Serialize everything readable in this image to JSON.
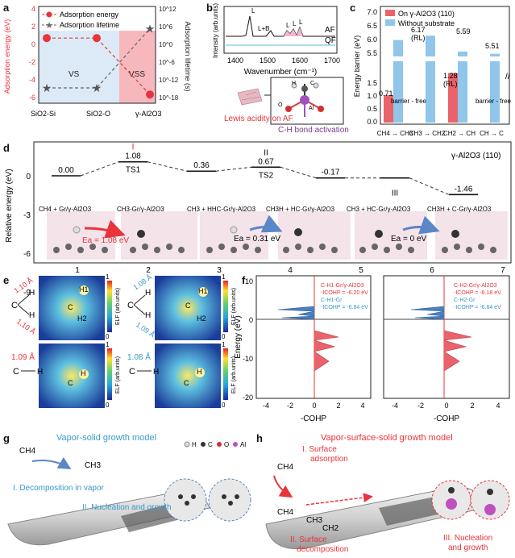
{
  "panels": {
    "a": "a",
    "b": "b",
    "c": "c",
    "d": "d",
    "e": "e",
    "f": "f",
    "g": "g",
    "h": "h"
  },
  "panel_a": {
    "legend": [
      "Adsorption energy",
      "Adsorption lifetime"
    ],
    "ylabel_left": "Adsorption energy (eV)",
    "ylabel_right": "Adsorption lifetime (s)",
    "categories": [
      "SiO2-Si",
      "SiO2-O",
      "γ-Al2O3"
    ],
    "region_labels": [
      "VS",
      "VSS"
    ],
    "left_ticks": [
      "4",
      "2",
      "0",
      "-2",
      "-4",
      "-6"
    ],
    "right_ticks": [
      "10^12",
      "10^6",
      "10^0",
      "10^-6",
      "10^-12",
      "10^-18"
    ],
    "colors": {
      "energy": "#e8343a",
      "lifetime": "#666666",
      "vs_bg": "#dce9f7",
      "vss_bg": "#f7b8bd"
    }
  },
  "panel_b": {
    "ylabel": "Intensity (arb.units)",
    "xlabel": "Wavenumber (cm⁻¹)",
    "xticks": [
      "1400",
      "1500",
      "1600",
      "1700"
    ],
    "traces": [
      "AF",
      "QF"
    ],
    "peak_labels": [
      "L",
      "L+B",
      "L",
      "L",
      "L"
    ],
    "caption_left": "Lewis acidity on AF",
    "caption_right": "C-H bond activation",
    "atoms": [
      "H",
      "C",
      "O",
      "Al"
    ]
  },
  "panel_c": {
    "ylabel": "Energy barrier (eV)",
    "legend": [
      "On γ-Al2O3 (110)",
      "Without substrate"
    ],
    "yticks_top": [
      "7.0",
      "6.5",
      "6.0",
      "5.5"
    ],
    "yticks_bottom": [
      "1.5",
      "1.0",
      "0.5",
      "0.0"
    ],
    "categories": [
      "CH4 → CH3",
      "CH3 → CH2",
      "CH2 → CH",
      "CH → C"
    ],
    "bar_labels": [
      "0.71",
      "6.17\n(RL)",
      "1.28\n(RL)",
      "5.59",
      "5.51"
    ],
    "barrier_free": "barrier - free",
    "colors": {
      "on": "#e8646a",
      "without": "#8fc6ea"
    }
  },
  "chart_data": [
    {
      "type": "line",
      "title": "",
      "xlabel": "",
      "ylabel": "Adsorption energy (eV)",
      "categories": [
        "SiO2-Si",
        "SiO2-O",
        "γ-Al2O3"
      ],
      "series": [
        {
          "name": "Adsorption energy",
          "values": [
            0.2,
            0.2,
            -4.8
          ]
        },
        {
          "name": "Adsorption lifetime",
          "values": [
            -14,
            -14,
            7
          ]
        }
      ]
    },
    {
      "type": "bar",
      "title": "",
      "ylabel": "Energy barrier (eV)",
      "categories": [
        "CH4 → CH3",
        "CH3 → CH2",
        "CH2 → CH",
        "CH → C"
      ],
      "series": [
        {
          "name": "On γ-Al2O3 (110)",
          "values": [
            0.71,
            0,
            1.28,
            0
          ]
        },
        {
          "name": "Without substrate",
          "values": [
            6.01,
            6.17,
            5.59,
            5.51
          ]
        }
      ]
    },
    {
      "type": "line",
      "title": "γ-Al2O3 (110)",
      "ylabel": "Relative energy (eV)",
      "categories": [
        "1",
        "2",
        "3",
        "4",
        "5",
        "6",
        "7"
      ],
      "yticks": [
        0,
        -3,
        -6,
        -9
      ],
      "series": [
        {
          "name": "",
          "values": [
            0.0,
            1.08,
            0.36,
            0.67,
            -0.17,
            -0.17,
            -1.46
          ]
        }
      ]
    }
  ],
  "panel_d": {
    "ylabel": "Relative energy (eV)",
    "title": "γ-Al2O3 (110)",
    "level_labels": [
      "0.00",
      "1.08",
      "0.36",
      "0.67",
      "-0.17",
      "-1.46"
    ],
    "ts_labels": [
      "TS1",
      "TS2"
    ],
    "roman": [
      "I",
      "II",
      "III"
    ],
    "states": [
      "CH4 + Gr/γ-Al2O3",
      "CH3-Gr/γ-Al2O3",
      "CH3 + HHC-Gr/γ-Al2O3",
      "CH3H + HC-Gr/γ-Al2O3",
      "CH3 + HC-Gr/γ-Al2O3",
      "CH3H + C-Gr/γ-Al2O3"
    ],
    "barriers": [
      "Ea = 1.08 eV",
      "Ea = 0.31 eV",
      "Ea = 0 eV"
    ],
    "xticks": [
      "1",
      "2",
      "3",
      "4",
      "5",
      "6",
      "7"
    ],
    "yticks": [
      "0",
      "-3",
      "-6",
      "-9"
    ]
  },
  "panel_e": {
    "bond_labels": [
      "1.10 Å",
      "1.10 Å",
      "1.08 Å",
      "1.09 Å",
      "1.09 Å",
      "1.08 Å"
    ],
    "atom_labels": [
      "H1",
      "H2",
      "C",
      "H1",
      "H2",
      "C",
      "H",
      "C",
      "H",
      "C"
    ],
    "scale_label": "ELF (arb.units)",
    "scale_ticks": [
      "1",
      "0"
    ]
  },
  "panel_f": {
    "ylabel": "Energy (eV)",
    "xlabel": "-COHP",
    "yticks": [
      "10",
      "0",
      "-10",
      "-20"
    ],
    "xticks": [
      "-4",
      "-2",
      "0",
      "2",
      "4"
    ],
    "left_legend": [
      "C-H1-Gr/γ-Al2O3",
      "-ICOHP = -6.20 eV",
      "C-H1-Gr",
      "-ICOHP = -6.84 eV"
    ],
    "right_legend": [
      "C-H2-Gr/γ-Al2O3",
      "-ICOHP = -6.18 eV",
      "C-H2-Gr",
      "-ICOHP = -6.64 eV"
    ]
  },
  "panel_g": {
    "title": "Vapor-solid growth model",
    "step1": "I. Decomposition in vapor",
    "step2": "II. Nucleation\nand growth",
    "species": [
      "CH4",
      "CH3"
    ],
    "atom_legend": [
      "H",
      "C",
      "O",
      "Al"
    ]
  },
  "panel_h": {
    "title": "Vapor-surface-solid growth model",
    "step1": "I. Surface\nadsorption",
    "step2": "II. Surface\ndecomposition",
    "step3": "III. Nucleation\nand growth",
    "species": [
      "CH4",
      "CH4",
      "CH3",
      "CH2"
    ]
  }
}
